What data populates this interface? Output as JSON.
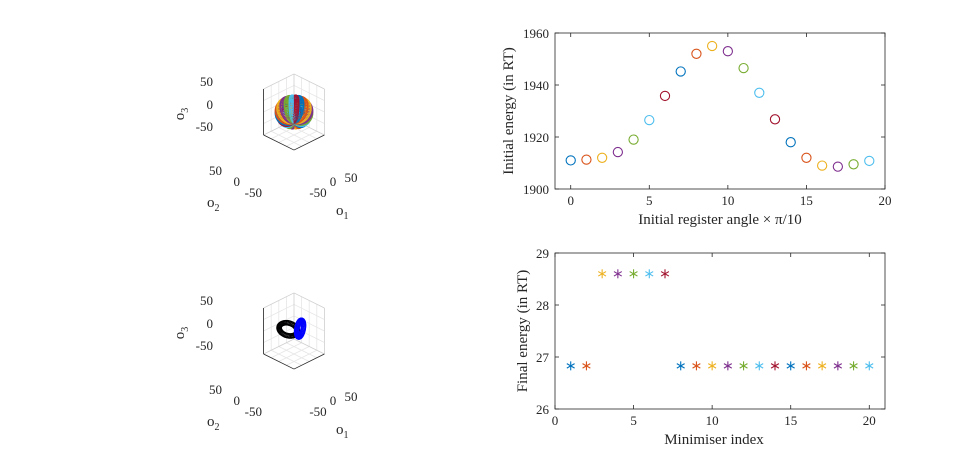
{
  "colors": [
    "#0072BD",
    "#D95319",
    "#EDB120",
    "#7E2F8E",
    "#77AC30",
    "#4DBEEE",
    "#A2142F"
  ],
  "chart_data": [
    {
      "id": "torus-3d",
      "type": "scatter",
      "projection": "3d",
      "axis_labels": {
        "x": "o",
        "x_sub": "1",
        "y": "o",
        "y_sub": "2",
        "z": "o",
        "z_sub": "3"
      },
      "x_ticks": [
        "-50",
        "0",
        "50"
      ],
      "y_ticks": [
        "50",
        "0",
        "-50"
      ],
      "z_ticks": [
        "50",
        "0",
        "-50"
      ],
      "description_series": "ring of 20 small-circle orbits forming a torus, multicolored"
    },
    {
      "id": "rings-3d",
      "type": "scatter",
      "projection": "3d",
      "axis_labels": {
        "x": "o",
        "x_sub": "1",
        "y": "o",
        "y_sub": "2",
        "z": "o",
        "z_sub": "3"
      },
      "x_ticks": [
        "-50",
        "0",
        "50"
      ],
      "y_ticks": [
        "50",
        "0",
        "-50"
      ],
      "z_ticks": [
        "50",
        "0",
        "-50"
      ],
      "ring_colors": [
        "#000000",
        "#0000FF"
      ]
    },
    {
      "id": "initial-energy",
      "type": "scatter",
      "marker": "circle",
      "xlabel": "Initial register angle × π/10",
      "ylabel": "Initial energy (in RT)",
      "xlim": [
        -1,
        20
      ],
      "ylim": [
        1900,
        1960
      ],
      "x_ticks": [
        "0",
        "5",
        "10",
        "15",
        "20"
      ],
      "x_tick_values": [
        0,
        5,
        10,
        15,
        20
      ],
      "y_ticks": [
        "1900",
        "1920",
        "1940",
        "1960"
      ],
      "y_tick_values": [
        1900,
        1920,
        1940,
        1960
      ],
      "x": [
        0,
        1,
        2,
        3,
        4,
        5,
        6,
        7,
        8,
        9,
        10,
        11,
        12,
        13,
        14,
        15,
        16,
        17,
        18,
        19
      ],
      "y": [
        1911,
        1911.3,
        1912,
        1914.2,
        1919,
        1926.5,
        1935.8,
        1945.2,
        1952,
        1955,
        1953,
        1946.5,
        1937,
        1926.8,
        1918,
        1912,
        1909,
        1908.6,
        1909.5,
        1910.8
      ]
    },
    {
      "id": "final-energy",
      "type": "scatter",
      "marker": "asterisk",
      "xlabel": "Minimiser index",
      "ylabel": "Final energy (in RT)",
      "xlim": [
        0,
        21
      ],
      "ylim": [
        26,
        29
      ],
      "x_ticks": [
        "0",
        "5",
        "10",
        "15",
        "20"
      ],
      "x_tick_values": [
        0,
        5,
        10,
        15,
        20
      ],
      "y_ticks": [
        "26",
        "27",
        "28",
        "29"
      ],
      "y_tick_values": [
        26,
        27,
        28,
        29
      ],
      "x": [
        1,
        2,
        3,
        4,
        5,
        6,
        7,
        8,
        9,
        10,
        11,
        12,
        13,
        14,
        15,
        16,
        17,
        18,
        19,
        20
      ],
      "y": [
        26.83,
        26.83,
        28.6,
        28.6,
        28.6,
        28.6,
        28.6,
        26.83,
        26.83,
        26.83,
        26.83,
        26.83,
        26.83,
        26.83,
        26.83,
        26.83,
        26.83,
        26.83,
        26.83,
        26.83
      ]
    }
  ]
}
